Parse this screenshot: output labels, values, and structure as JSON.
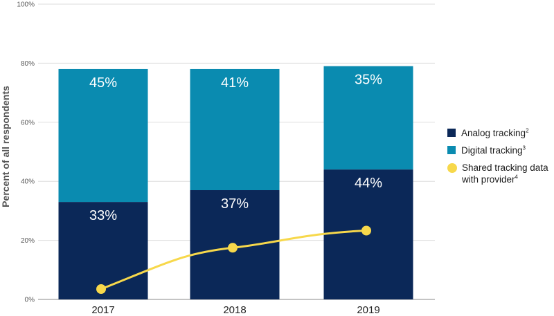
{
  "chart_data": {
    "type": "bar",
    "stacked": true,
    "categories": [
      "2017",
      "2018",
      "2019"
    ],
    "ylabel": "Percent of all respondents",
    "ylim": [
      0,
      100
    ],
    "yticks": [
      "0%",
      "20%",
      "40%",
      "60%",
      "80%",
      "100%"
    ],
    "grid": true,
    "legend_position": "right",
    "series": [
      {
        "name": "Analog tracking",
        "footnote": "2",
        "color": "#0b2858",
        "values": [
          33,
          37,
          44
        ],
        "labels": [
          "33%",
          "37%",
          "44%"
        ]
      },
      {
        "name": "Digital tracking",
        "footnote": "3",
        "color": "#0a8bb0",
        "values": [
          45,
          41,
          35
        ],
        "labels": [
          "45%",
          "41%",
          "35%"
        ]
      }
    ],
    "line_series": {
      "name": "Shared tracking data with provider",
      "footnote": "4",
      "color": "#f7d84b",
      "values": [
        3.5,
        17.5,
        23.3
      ]
    }
  }
}
